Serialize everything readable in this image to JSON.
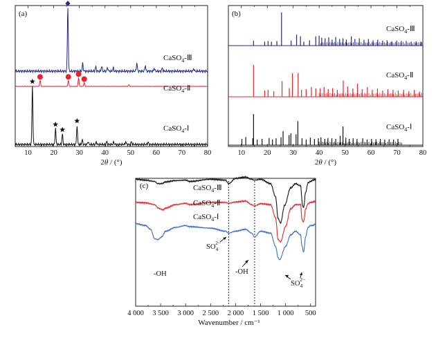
{
  "figure": {
    "panels": [
      {
        "id": "a",
        "label": "(a)",
        "xlabel_main": "2",
        "xlabel_theta": "θ",
        "xlabel_unit": " / (°)",
        "xticks": [
          "10",
          "20",
          "30",
          "40",
          "50",
          "60",
          "70",
          "80"
        ],
        "traces": [
          {
            "name_base": "CaSO",
            "name_sub": "4",
            "name_suffix": "-Ⅲ",
            "color": "#1f2a8a",
            "marker": "diamond-icon"
          },
          {
            "name_base": "CaSO",
            "name_sub": "4",
            "name_suffix": "-Ⅱ",
            "color": "#e8232a",
            "marker": "circle-icon"
          },
          {
            "name_base": "CaSO",
            "name_sub": "4",
            "name_suffix": "-Ⅰ",
            "color": "#111111",
            "marker": "star-icon"
          }
        ]
      },
      {
        "id": "b",
        "label": "(b)",
        "xlabel_main": "2",
        "xlabel_theta": "θ",
        "xlabel_unit": " / (°)",
        "xticks": [
          "10",
          "20",
          "30",
          "40",
          "50",
          "60",
          "70",
          "80"
        ],
        "traces": [
          {
            "name_base": "CaSO",
            "name_sub": "4",
            "name_suffix": "-Ⅲ",
            "color": "#1f2a8a"
          },
          {
            "name_base": "CaSO",
            "name_sub": "4",
            "name_suffix": "-Ⅱ",
            "color": "#e8232a"
          },
          {
            "name_base": "CaSO",
            "name_sub": "4",
            "name_suffix": "-Ⅰ",
            "color": "#111111"
          }
        ]
      },
      {
        "id": "c",
        "label": "(c)",
        "xlabel": "Wavenumber / cm⁻¹",
        "xticks": [
          "4 000",
          "3 500",
          "3 000",
          "2 500",
          "2 000",
          "1 500",
          "1 000",
          "500"
        ],
        "traces": [
          {
            "name_base": "CaSO",
            "name_sub": "4",
            "name_suffix": "-Ⅲ",
            "color": "#111111"
          },
          {
            "name_base": "CaSO",
            "name_sub": "4",
            "name_suffix": "-Ⅱ",
            "color": "#e8232a"
          },
          {
            "name_base": "CaSO",
            "name_sub": "4",
            "name_suffix": "-Ⅰ",
            "color": "#3a6fc4"
          }
        ],
        "annotations": [
          {
            "base": "SO",
            "sub": "4",
            "sup": "2−"
          },
          {
            "text": "-OH"
          },
          {
            "text": "-OH"
          },
          {
            "base": "SO",
            "sub": "4",
            "sup": "2−"
          }
        ]
      }
    ]
  },
  "chart_data": [
    {
      "type": "line",
      "title": "",
      "xlabel": "2θ / (°)",
      "ylabel": "",
      "xlim": [
        5,
        80
      ],
      "series": [
        {
          "name": "CaSO4-Ⅲ",
          "peaks": [
            [
              25.5,
              1.0
            ],
            [
              31.3,
              0.12
            ],
            [
              36.4,
              0.07
            ],
            [
              38.7,
              0.08
            ],
            [
              41.0,
              0.06
            ],
            [
              43.2,
              0.05
            ],
            [
              52.4,
              0.13
            ],
            [
              55.7,
              0.09
            ],
            [
              59.2,
              0.05
            ],
            [
              62.3,
              0.05
            ],
            [
              74.6,
              0.04
            ]
          ]
        },
        {
          "name": "CaSO4-Ⅱ",
          "peaks": [
            [
              14.7,
              0.55
            ],
            [
              25.7,
              0.55
            ],
            [
              29.7,
              0.8
            ],
            [
              31.9,
              0.35
            ],
            [
              49.3,
              0.15
            ]
          ]
        },
        {
          "name": "CaSO4-Ⅰ",
          "peaks": [
            [
              11.7,
              1.0
            ],
            [
              20.7,
              0.27
            ],
            [
              23.4,
              0.18
            ],
            [
              29.1,
              0.33
            ],
            [
              31.1,
              0.08
            ],
            [
              33.4,
              0.05
            ],
            [
              36.6,
              0.04
            ],
            [
              40.7,
              0.05
            ],
            [
              43.4,
              0.04
            ],
            [
              48.1,
              0.05
            ],
            [
              50.3,
              0.05
            ],
            [
              56.8,
              0.04
            ]
          ]
        }
      ],
      "markers": [
        {
          "series": "CaSO4-Ⅲ",
          "symbol": "diamond",
          "x": [
            25.5
          ]
        },
        {
          "series": "CaSO4-Ⅱ",
          "symbol": "circle",
          "x": [
            14.7,
            25.7,
            29.7,
            31.9
          ]
        },
        {
          "series": "CaSO4-Ⅰ",
          "symbol": "star",
          "x": [
            11.7,
            20.7,
            23.4,
            29.1
          ]
        }
      ]
    },
    {
      "type": "bar",
      "title": "",
      "xlabel": "2θ / (°)",
      "ylabel": "",
      "xlim": [
        5,
        80
      ],
      "series": [
        {
          "name": "CaSO4-Ⅲ",
          "x": [
            14.7,
            19.0,
            20.3,
            21.6,
            23.7,
            25.5,
            29.2,
            31.3,
            32.8,
            34.1,
            36.3,
            38.7,
            40.0,
            41.0,
            42.3,
            43.7,
            45.0,
            46.4,
            47.9,
            49.2,
            50.5,
            52.4,
            53.8,
            55.5,
            57.3,
            59.0,
            60.8,
            62.6,
            64.5,
            66.2,
            68.0,
            69.9,
            71.7,
            73.6,
            75.5,
            77.4,
            79.2
          ],
          "values": [
            0.15,
            0.12,
            0.14,
            0.12,
            0.14,
            1.0,
            0.15,
            0.33,
            0.28,
            0.12,
            0.16,
            0.28,
            0.3,
            0.24,
            0.22,
            0.25,
            0.18,
            0.26,
            0.2,
            0.22,
            0.18,
            0.28,
            0.2,
            0.22,
            0.17,
            0.2,
            0.16,
            0.18,
            0.15,
            0.16,
            0.13,
            0.15,
            0.14,
            0.14,
            0.12,
            0.13,
            0.12
          ]
        },
        {
          "name": "CaSO4-Ⅱ",
          "x": [
            14.7,
            19.0,
            20.3,
            22.5,
            25.7,
            28.5,
            29.7,
            31.9,
            33.2,
            35.0,
            37.0,
            38.7,
            40.4,
            41.9,
            43.5,
            45.2,
            47.0,
            49.3,
            51.0,
            53.0,
            54.8,
            56.6,
            58.6,
            60.5,
            62.5,
            64.5,
            66.5,
            68.5,
            70.5,
            72.6,
            74.6,
            76.7,
            78.7
          ],
          "values": [
            0.92,
            0.18,
            0.2,
            0.16,
            0.45,
            0.25,
            0.68,
            0.69,
            0.2,
            0.22,
            0.28,
            0.24,
            0.25,
            0.28,
            0.22,
            0.25,
            0.2,
            0.47,
            0.3,
            0.24,
            0.38,
            0.22,
            0.28,
            0.2,
            0.24,
            0.18,
            0.22,
            0.2,
            0.18,
            0.2,
            0.16,
            0.2,
            0.15
          ]
        },
        {
          "name": "CaSO4-Ⅰ",
          "x": [
            10.2,
            11.7,
            14.4,
            14.7,
            16.1,
            18.0,
            20.7,
            22.0,
            23.4,
            25.3,
            26.1,
            28.4,
            29.1,
            31.1,
            31.8,
            33.4,
            35.0,
            36.6,
            38.2,
            39.7,
            40.7,
            42.2,
            43.4,
            44.9,
            46.4,
            48.1,
            49.2,
            50.3,
            51.6,
            53.1,
            54.6,
            56.8,
            58.5,
            60.2,
            61.9,
            63.6,
            65.3,
            67.0,
            68.7,
            70.4
          ],
          "values": [
            0.2,
            0.26,
            0.22,
            1.0,
            0.18,
            0.2,
            0.23,
            0.18,
            0.22,
            0.25,
            0.45,
            0.32,
            0.38,
            0.35,
            0.77,
            0.22,
            0.18,
            0.24,
            0.2,
            0.22,
            0.25,
            0.2,
            0.23,
            0.22,
            0.2,
            0.3,
            0.6,
            0.24,
            0.2,
            0.22,
            0.2,
            0.22,
            0.18,
            0.2,
            0.19,
            0.2,
            0.18,
            0.19,
            0.18,
            0.2
          ]
        }
      ]
    },
    {
      "type": "line",
      "title": "",
      "xlabel": "Wavenumber / cm⁻¹",
      "ylabel": "",
      "xlim": [
        4000,
        400
      ],
      "series": [
        {
          "name": "CaSO4-Ⅲ",
          "x": [
            4000,
            3800,
            3620,
            3560,
            3480,
            3400,
            3200,
            3000,
            2920,
            2500,
            2200,
            2140,
            2000,
            1800,
            1680,
            1620,
            1500,
            1300,
            1200,
            1150,
            1100,
            1020,
            900,
            800,
            700,
            660,
            640,
            600,
            550,
            500,
            450,
            400
          ],
          "values": [
            0.2,
            0.18,
            0.15,
            0.1,
            0.1,
            0.14,
            0.17,
            0.18,
            0.15,
            0.2,
            0.18,
            0.1,
            0.22,
            0.25,
            0.2,
            0.18,
            0.2,
            0.1,
            -0.2,
            -0.7,
            -0.8,
            -0.4,
            0.0,
            0.1,
            0.05,
            -0.4,
            -0.45,
            -0.1,
            0.12,
            0.15,
            0.18,
            0.2
          ]
        },
        {
          "name": "CaSO4-Ⅱ",
          "x": [
            4000,
            3800,
            3620,
            3550,
            3450,
            3400,
            3200,
            3000,
            2920,
            2500,
            2200,
            2140,
            2000,
            1800,
            1680,
            1620,
            1500,
            1300,
            1200,
            1150,
            1100,
            1000,
            900,
            800,
            700,
            670,
            640,
            600,
            550,
            500,
            450,
            400
          ],
          "values": [
            0.05,
            0.04,
            0.0,
            -0.08,
            -0.12,
            -0.08,
            0.0,
            0.03,
            0.0,
            0.05,
            0.05,
            0.03,
            0.06,
            0.08,
            0.0,
            -0.03,
            0.02,
            0.0,
            -0.3,
            -0.8,
            -0.85,
            -0.5,
            -0.1,
            0.0,
            0.0,
            -0.35,
            -0.4,
            -0.1,
            0.02,
            0.05,
            0.06,
            0.08
          ]
        },
        {
          "name": "CaSO4-Ⅰ",
          "x": [
            4000,
            3800,
            3700,
            3620,
            3550,
            3480,
            3400,
            3200,
            3000,
            2920,
            2500,
            2200,
            2140,
            2000,
            1800,
            1680,
            1620,
            1500,
            1300,
            1200,
            1150,
            1120,
            1000,
            900,
            800,
            700,
            670,
            640,
            600,
            550,
            500,
            450,
            400
          ],
          "values": [
            -0.1,
            -0.15,
            -0.25,
            -0.5,
            -0.52,
            -0.45,
            -0.3,
            -0.2,
            -0.15,
            -0.18,
            -0.22,
            -0.3,
            -0.35,
            -0.3,
            -0.25,
            -0.35,
            -0.45,
            -0.3,
            -0.35,
            -0.7,
            -1.0,
            -1.05,
            -0.7,
            -0.4,
            -0.3,
            -0.4,
            -0.7,
            -0.85,
            -0.45,
            -0.2,
            -0.15,
            -0.15,
            -0.1
          ]
        }
      ],
      "annotations": [
        "SO4 2− near 2140",
        "-OH near 3550",
        "-OH near 1620",
        "SO4 2− near 650"
      ],
      "reference_lines_x": [
        2140,
        1620
      ]
    }
  ]
}
